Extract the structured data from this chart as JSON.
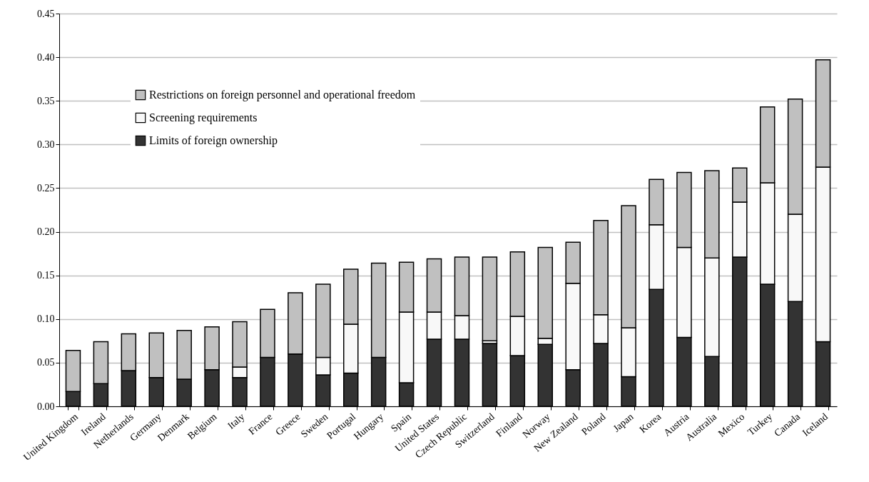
{
  "chart_data": {
    "type": "bar",
    "stacked": true,
    "grid": "y",
    "legend": "top left",
    "categories": [
      "United Kingdom",
      "Ireland",
      "Netherlands",
      "Germany",
      "Denmark",
      "Belgium",
      "Italy",
      "France",
      "Greece",
      "Sweden",
      "Portugal",
      "Hungary",
      "Spain",
      "United States",
      "Czech Republic",
      "Switzerland",
      "Finland",
      "Norway",
      "New Zealand",
      "Poland",
      "Japan",
      "Korea",
      "Austria",
      "Australia",
      "Mexico",
      "Turkey",
      "Canada",
      "Iceland"
    ],
    "series": [
      {
        "name": "Limits of foreign ownership",
        "color": "#333333",
        "values": [
          0.017,
          0.026,
          0.041,
          0.033,
          0.031,
          0.042,
          0.033,
          0.056,
          0.06,
          0.036,
          0.038,
          0.056,
          0.027,
          0.077,
          0.077,
          0.072,
          0.058,
          0.071,
          0.042,
          0.072,
          0.034,
          0.134,
          0.079,
          0.057,
          0.171,
          0.14,
          0.12,
          0.074
        ]
      },
      {
        "name": "Screening requirements",
        "color": "#f8f8f8",
        "values": [
          null,
          null,
          null,
          null,
          null,
          null,
          0.012,
          null,
          null,
          0.02,
          0.056,
          null,
          0.081,
          0.031,
          0.027,
          0.003,
          0.045,
          0.007,
          0.099,
          0.033,
          0.056,
          0.074,
          0.103,
          0.113,
          0.063,
          0.116,
          0.1,
          0.2
        ]
      },
      {
        "name": "Restrictions on foreign personnel and operational freedom",
        "color": "#c0c0c0",
        "values": [
          0.047,
          0.048,
          0.042,
          0.051,
          0.056,
          0.049,
          0.052,
          0.055,
          0.07,
          0.084,
          0.063,
          0.108,
          0.057,
          0.061,
          0.067,
          0.096,
          0.074,
          0.104,
          0.047,
          0.108,
          0.14,
          0.052,
          0.086,
          0.1,
          0.039,
          0.087,
          0.132,
          0.123
        ]
      }
    ],
    "ylim": [
      0,
      0.45
    ],
    "yticks": [
      {
        "value": 0,
        "label": "0.00"
      },
      0.05,
      {
        "value": 0.1,
        "label": "0.10"
      },
      0.15,
      {
        "value": 0.2,
        "label": "0.20"
      },
      0.25,
      {
        "value": 0.3,
        "label": "0.30"
      },
      0.35,
      {
        "value": 0.4,
        "label": "0.40"
      },
      0.45
    ]
  }
}
